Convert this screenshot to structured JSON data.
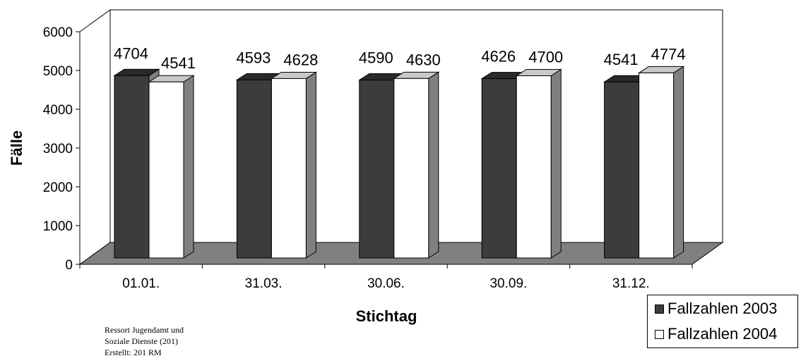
{
  "chart_data": {
    "type": "bar",
    "title": "",
    "xlabel": "Stichtag",
    "ylabel": "Fälle",
    "ylim": [
      0,
      6000
    ],
    "yticks": [
      "0",
      "1000",
      "2000",
      "3000",
      "4000",
      "5000",
      "6000"
    ],
    "categories": [
      "01.01.",
      "31.03.",
      "30.06.",
      "30.09.",
      "31.12."
    ],
    "series": [
      {
        "name": "Fallzahlen 2003",
        "values": [
          4704,
          4593,
          4590,
          4626,
          4541
        ],
        "color": "#3c3c3c"
      },
      {
        "name": "Fallzahlen 2004",
        "values": [
          4541,
          4628,
          4630,
          4700,
          4774
        ],
        "color": "#ffffff"
      }
    ],
    "data_labels": true,
    "grid": false,
    "legend_position": "bottom-right",
    "style": "3d"
  },
  "footer": {
    "line1": "Ressort Jugendamt und",
    "line2": "Soziale Dienste (201)",
    "line3": "Erstellt: 201 RM"
  }
}
